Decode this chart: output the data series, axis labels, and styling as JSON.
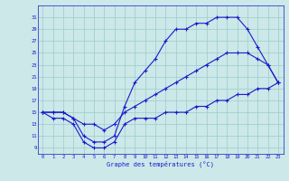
{
  "xlabel": "Graphe des températures (°C)",
  "bg_color": "#cce8e8",
  "line_color": "#1a1acc",
  "grid_color": "#99cccc",
  "hours": [
    0,
    1,
    2,
    3,
    4,
    5,
    6,
    7,
    8,
    9,
    10,
    11,
    12,
    13,
    14,
    15,
    16,
    17,
    18,
    19,
    20,
    21,
    22,
    23
  ],
  "max_temps": [
    15,
    15,
    15,
    14,
    11,
    10,
    10,
    11,
    16,
    20,
    22,
    24,
    27,
    29,
    29,
    30,
    30,
    31,
    31,
    31,
    29,
    26,
    23,
    20
  ],
  "mean_temps": [
    15,
    15,
    15,
    14,
    13,
    13,
    12,
    13,
    15,
    16,
    17,
    18,
    19,
    20,
    21,
    22,
    23,
    24,
    25,
    25,
    25,
    24,
    23,
    20
  ],
  "min_temps": [
    15,
    14,
    14,
    13,
    10,
    9,
    9,
    10,
    13,
    14,
    14,
    14,
    15,
    15,
    15,
    16,
    16,
    17,
    17,
    18,
    18,
    19,
    19,
    20
  ],
  "yticks": [
    9,
    11,
    13,
    15,
    17,
    19,
    21,
    23,
    25,
    27,
    29,
    31
  ],
  "xticks": [
    0,
    1,
    2,
    3,
    4,
    5,
    6,
    7,
    8,
    9,
    10,
    11,
    12,
    13,
    14,
    15,
    16,
    17,
    18,
    19,
    20,
    21,
    22,
    23
  ],
  "ylim": [
    8.0,
    33.0
  ],
  "xlim": [
    -0.5,
    23.5
  ]
}
